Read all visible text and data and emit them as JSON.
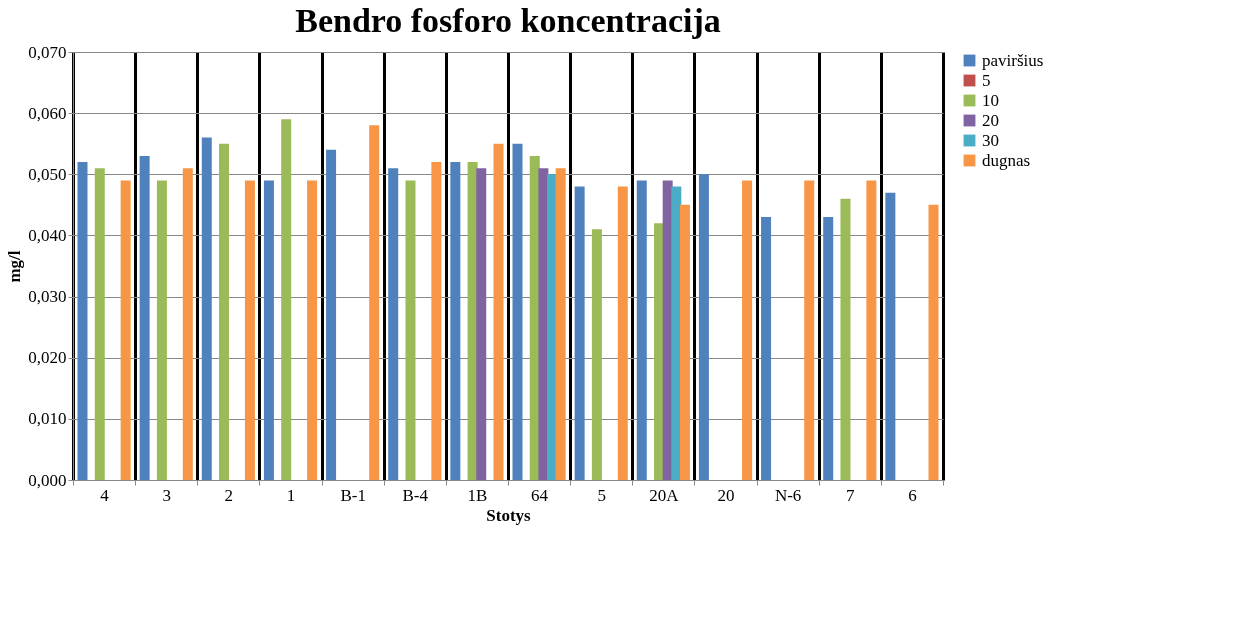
{
  "chart_data": {
    "type": "bar",
    "title": "Bendro fosforo koncentracija",
    "xlabel": "Stotys",
    "ylabel": "mg/l",
    "categories": [
      "4",
      "3",
      "2",
      "1",
      "B-1",
      "B-4",
      "1B",
      "64",
      "5",
      "20A",
      "20",
      "N-6",
      "7",
      "6"
    ],
    "series": [
      {
        "name": "paviršius",
        "color": "#4f81bd",
        "values": [
          0.052,
          0.053,
          0.056,
          0.049,
          0.054,
          0.051,
          0.052,
          0.055,
          0.048,
          0.049,
          0.05,
          0.043,
          0.043,
          0.047
        ]
      },
      {
        "name": "5",
        "color": "#c0504d",
        "values": [
          null,
          null,
          null,
          null,
          null,
          null,
          null,
          null,
          null,
          null,
          null,
          null,
          null,
          null
        ]
      },
      {
        "name": "10",
        "color": "#9bbb59",
        "values": [
          0.051,
          0.049,
          0.055,
          0.059,
          null,
          0.049,
          0.052,
          0.053,
          0.041,
          0.042,
          null,
          null,
          0.046,
          null
        ]
      },
      {
        "name": "20",
        "color": "#8064a2",
        "values": [
          null,
          null,
          null,
          null,
          null,
          null,
          0.051,
          0.051,
          null,
          0.049,
          null,
          null,
          null,
          null
        ]
      },
      {
        "name": "30",
        "color": "#4bacc6",
        "values": [
          null,
          null,
          null,
          null,
          null,
          null,
          null,
          0.05,
          null,
          0.048,
          null,
          null,
          null,
          null
        ]
      },
      {
        "name": "dugnas",
        "color": "#f79646",
        "values": [
          0.049,
          0.051,
          0.049,
          0.049,
          0.058,
          0.052,
          0.055,
          0.051,
          0.048,
          0.045,
          0.049,
          0.049,
          0.049,
          0.045
        ]
      }
    ],
    "ylim": [
      0,
      0.07
    ],
    "yticks": [
      {
        "value": 0,
        "label": "0,000"
      },
      {
        "value": 0.01,
        "label": "0,010"
      },
      {
        "value": 0.02,
        "label": "0,020"
      },
      {
        "value": 0.03,
        "label": "0,030"
      },
      {
        "value": 0.04,
        "label": "0,040"
      },
      {
        "value": 0.05,
        "label": "0,050"
      },
      {
        "value": 0.06,
        "label": "0,060"
      },
      {
        "value": 0.07,
        "label": "0,070"
      }
    ],
    "grid": true,
    "legend": "right"
  }
}
